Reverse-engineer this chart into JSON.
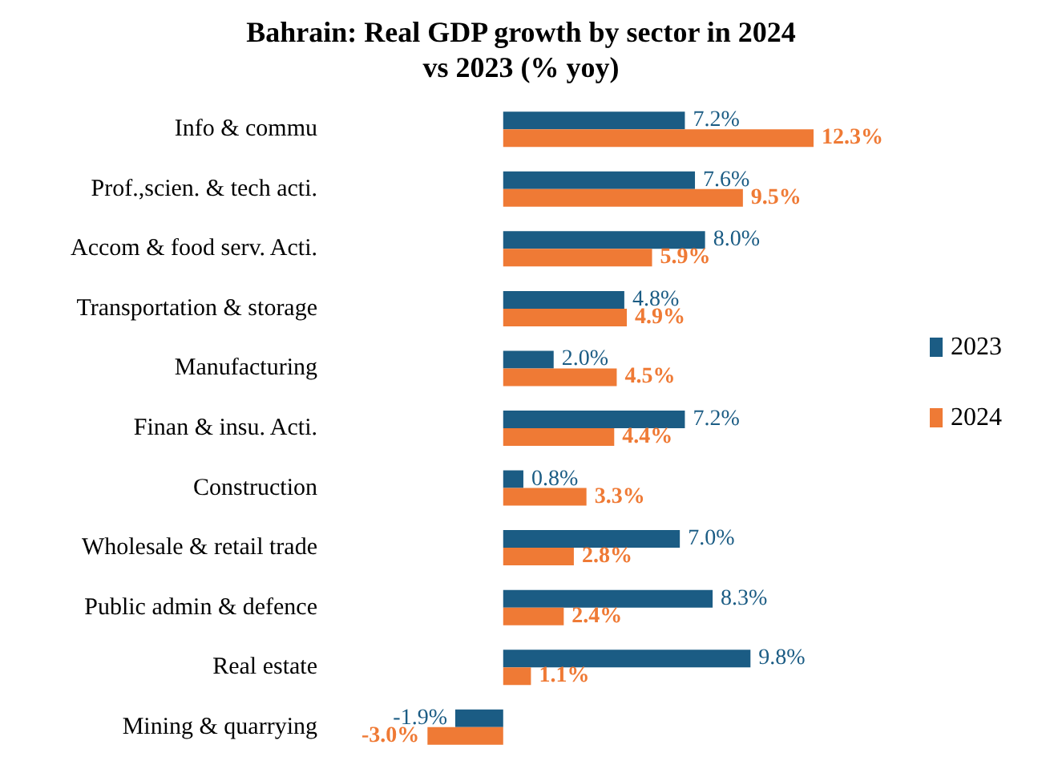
{
  "chart_data": {
    "type": "bar",
    "orientation": "horizontal",
    "title": "Bahrain: Real GDP growth by sector in 2024\nvs 2023 (% yoy)",
    "categories": [
      "Info & commu",
      "Prof.,scien. & tech acti.",
      "Accom & food serv. Acti.",
      "Transportation & storage",
      "Manufacturing",
      "Finan & insu. Acti.",
      "Construction",
      "Wholesale & retail trade",
      "Public admin & defence",
      "Real estate",
      "Mining & quarrying"
    ],
    "series": [
      {
        "name": "2023",
        "color": "#1b5c84",
        "values": [
          7.2,
          7.6,
          8.0,
          4.8,
          2.0,
          7.2,
          0.8,
          7.0,
          8.3,
          9.8,
          -1.9
        ],
        "value_labels": [
          "7.2%",
          "7.6%",
          "8.0%",
          "4.8%",
          "2.0%",
          "7.2%",
          "0.8%",
          "7.0%",
          "8.3%",
          "9.8%",
          "-1.9%"
        ]
      },
      {
        "name": "2024",
        "color": "#ef7a35",
        "values": [
          12.3,
          9.5,
          5.9,
          4.9,
          4.5,
          4.4,
          3.3,
          2.8,
          2.4,
          1.1,
          -3.0
        ],
        "value_labels": [
          "12.3%",
          "9.5%",
          "5.9%",
          "4.9%",
          "4.5%",
          "4.4%",
          "3.3%",
          "2.8%",
          "2.4%",
          "1.1%",
          "-3.0%"
        ]
      }
    ],
    "legend": "right",
    "grid": false,
    "tick_labels": "y"
  }
}
